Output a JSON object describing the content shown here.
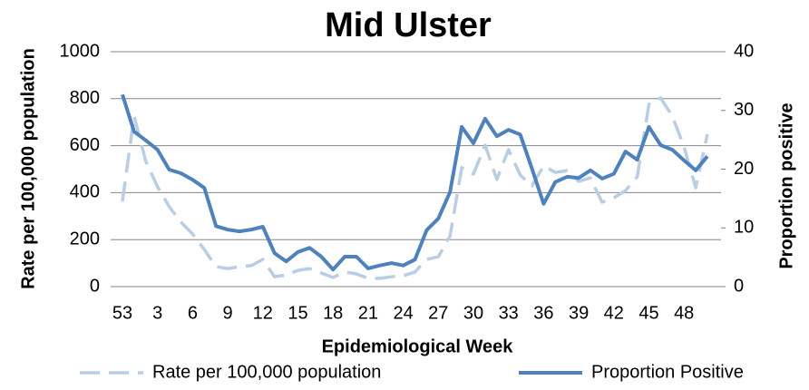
{
  "chart_data": {
    "type": "line",
    "title": "Mid Ulster",
    "x_label": "Epidemiological Week",
    "y_label": "Rate per 100,000 population",
    "y2_label": "Proportion positive",
    "categories": [
      "53",
      null,
      null,
      "3",
      null,
      null,
      "6",
      null,
      null,
      "9",
      null,
      null,
      "12",
      null,
      null,
      "15",
      null,
      null,
      "18",
      null,
      null,
      "21",
      null,
      null,
      "24",
      null,
      null,
      "27",
      null,
      null,
      "30",
      null,
      null,
      "33",
      null,
      null,
      "36",
      null,
      null,
      "39",
      null,
      null,
      "42",
      null,
      null,
      "45",
      null,
      null,
      "48",
      null,
      null
    ],
    "series": [
      {
        "name": "Rate per 100,000 population",
        "color": "#b9cde5",
        "dashed": true,
        "axis": "y",
        "values": [
          363,
          726,
          533,
          425,
          340,
          274,
          224,
          158,
          85,
          77,
          85,
          89,
          116,
          42,
          50,
          69,
          77,
          58,
          39,
          62,
          54,
          35,
          35,
          42,
          46,
          62,
          116,
          127,
          216,
          506,
          479,
          602,
          456,
          583,
          475,
          429,
          514,
          486,
          494,
          448,
          463,
          359,
          378,
          409,
          467,
          776,
          803,
          726,
          595,
          421,
          649
        ]
      },
      {
        "name": "Proportion Positive",
        "color": "#4f81bd",
        "dashed": false,
        "axis": "y2",
        "values": [
          32.7,
          26.4,
          24.9,
          23.3,
          19.9,
          19.3,
          18.2,
          16.8,
          10.3,
          9.7,
          9.4,
          9.7,
          10.2,
          5.7,
          4.3,
          5.9,
          6.6,
          5.1,
          2.9,
          5.1,
          5.1,
          3.1,
          3.6,
          4.0,
          3.6,
          4.6,
          9.6,
          11.6,
          16.1,
          27.2,
          24.4,
          28.6,
          25.6,
          26.7,
          25.9,
          20.1,
          14.1,
          17.8,
          18.7,
          18.5,
          19.8,
          18.4,
          19.2,
          23.0,
          21.6,
          27.2,
          24.1,
          23.3,
          21.5,
          19.8,
          22.2
        ]
      }
    ],
    "ylim": [
      0,
      1000
    ],
    "yticks": [
      0,
      200,
      400,
      600,
      800,
      1000
    ],
    "y2lim": [
      0,
      40
    ],
    "y2ticks": [
      0,
      10,
      20,
      30,
      40
    ],
    "grid": true,
    "legend": "bottom"
  }
}
